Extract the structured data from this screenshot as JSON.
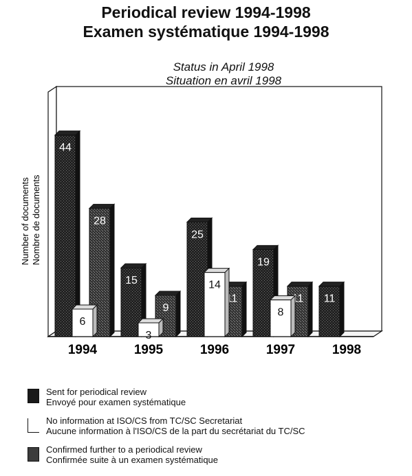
{
  "header": {
    "title_line1": "Periodical review 1994-1998",
    "title_line2": "Examen systématique 1994-1998",
    "subtitle_line1": "Status in April 1998",
    "subtitle_line2": "Situation en avril 1998"
  },
  "chart_data": {
    "type": "bar",
    "title": "Periodical review 1994-1998 / Examen systématique 1994-1998",
    "subtitle": "Status in April 1998 / Situation en avril 1998",
    "ylabel_line1": "Number of documents",
    "ylabel_line2": "Nombre de documents",
    "xlabel": "",
    "categories": [
      "1994",
      "1995",
      "1996",
      "1997",
      "1998"
    ],
    "ylim": [
      0,
      48
    ],
    "grid": false,
    "series": [
      {
        "name_line1": "Sent for periodical review",
        "name_line2": "Envoyé pour examen systématique",
        "color": "#1a1a1a",
        "values": [
          44,
          15,
          25,
          19,
          11
        ]
      },
      {
        "name_line1": "No information at ISO/CS from TC/SC Secretariat",
        "name_line2": "Aucune information à l'ISO/CS de la part du secrétariat du TC/SC",
        "color": "#ffffff",
        "values": [
          6,
          3,
          14,
          8,
          0
        ]
      },
      {
        "name_line1": "Confirmed further to a periodical review",
        "name_line2": "Confirmée suite à un examen systématique",
        "color": "#3c3c3c",
        "values": [
          28,
          9,
          11,
          11,
          0
        ]
      }
    ],
    "data_labels": [
      [
        "44",
        "15",
        "25",
        "19",
        "11"
      ],
      [
        "6",
        "3",
        "14",
        "8",
        ""
      ],
      [
        "28",
        "9",
        "11",
        "11",
        ""
      ]
    ]
  }
}
